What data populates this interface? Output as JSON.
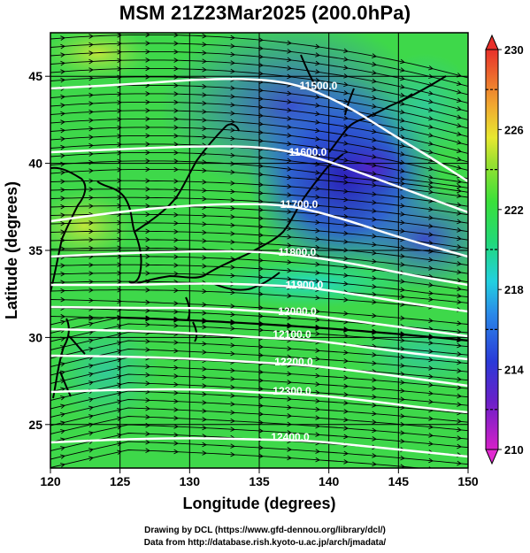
{
  "title": "MSM 21Z23Mar2025 (200.0hPa)",
  "xaxis": {
    "label": "Longitude (degrees)",
    "range": [
      120,
      150
    ],
    "ticks": [
      120,
      125,
      130,
      135,
      140,
      145,
      150
    ]
  },
  "yaxis": {
    "label": "Latitude  (degrees)",
    "range": [
      22.5,
      47.5
    ],
    "ticks": [
      25,
      30,
      35,
      40,
      45
    ]
  },
  "colorbar": {
    "range": [
      210,
      230
    ],
    "ticks": [
      210,
      214,
      218,
      222,
      226,
      230
    ],
    "dashed_levels": [
      212,
      216,
      220,
      224,
      228
    ],
    "colormap": "magenta-blue-cyan-green-yellow-red"
  },
  "contours": {
    "color": "#ffffff",
    "levels": [
      {
        "value": 11500,
        "label": "11500.0"
      },
      {
        "value": 11600,
        "label": "11600.0"
      },
      {
        "value": 11700,
        "label": "11700.0"
      },
      {
        "value": 11800,
        "label": "11800.0"
      },
      {
        "value": 11900,
        "label": "11900.0"
      },
      {
        "value": 12000,
        "label": "12000.0"
      },
      {
        "value": 12100,
        "label": "12100.0"
      },
      {
        "value": 12200,
        "label": "12200.0"
      },
      {
        "value": 12300,
        "label": "12300.0"
      },
      {
        "value": 12400,
        "label": "12400.0"
      }
    ]
  },
  "field": {
    "variable": "temperature",
    "streamlines": "wind",
    "grid_lines": true
  },
  "credits": {
    "line1": "Drawing by DCL (https://www.gfd-dennou.org/library/dcl/)",
    "line2": "Data from http://database.rish.kyoto-u.ac.jp/arch/jmadata/"
  }
}
